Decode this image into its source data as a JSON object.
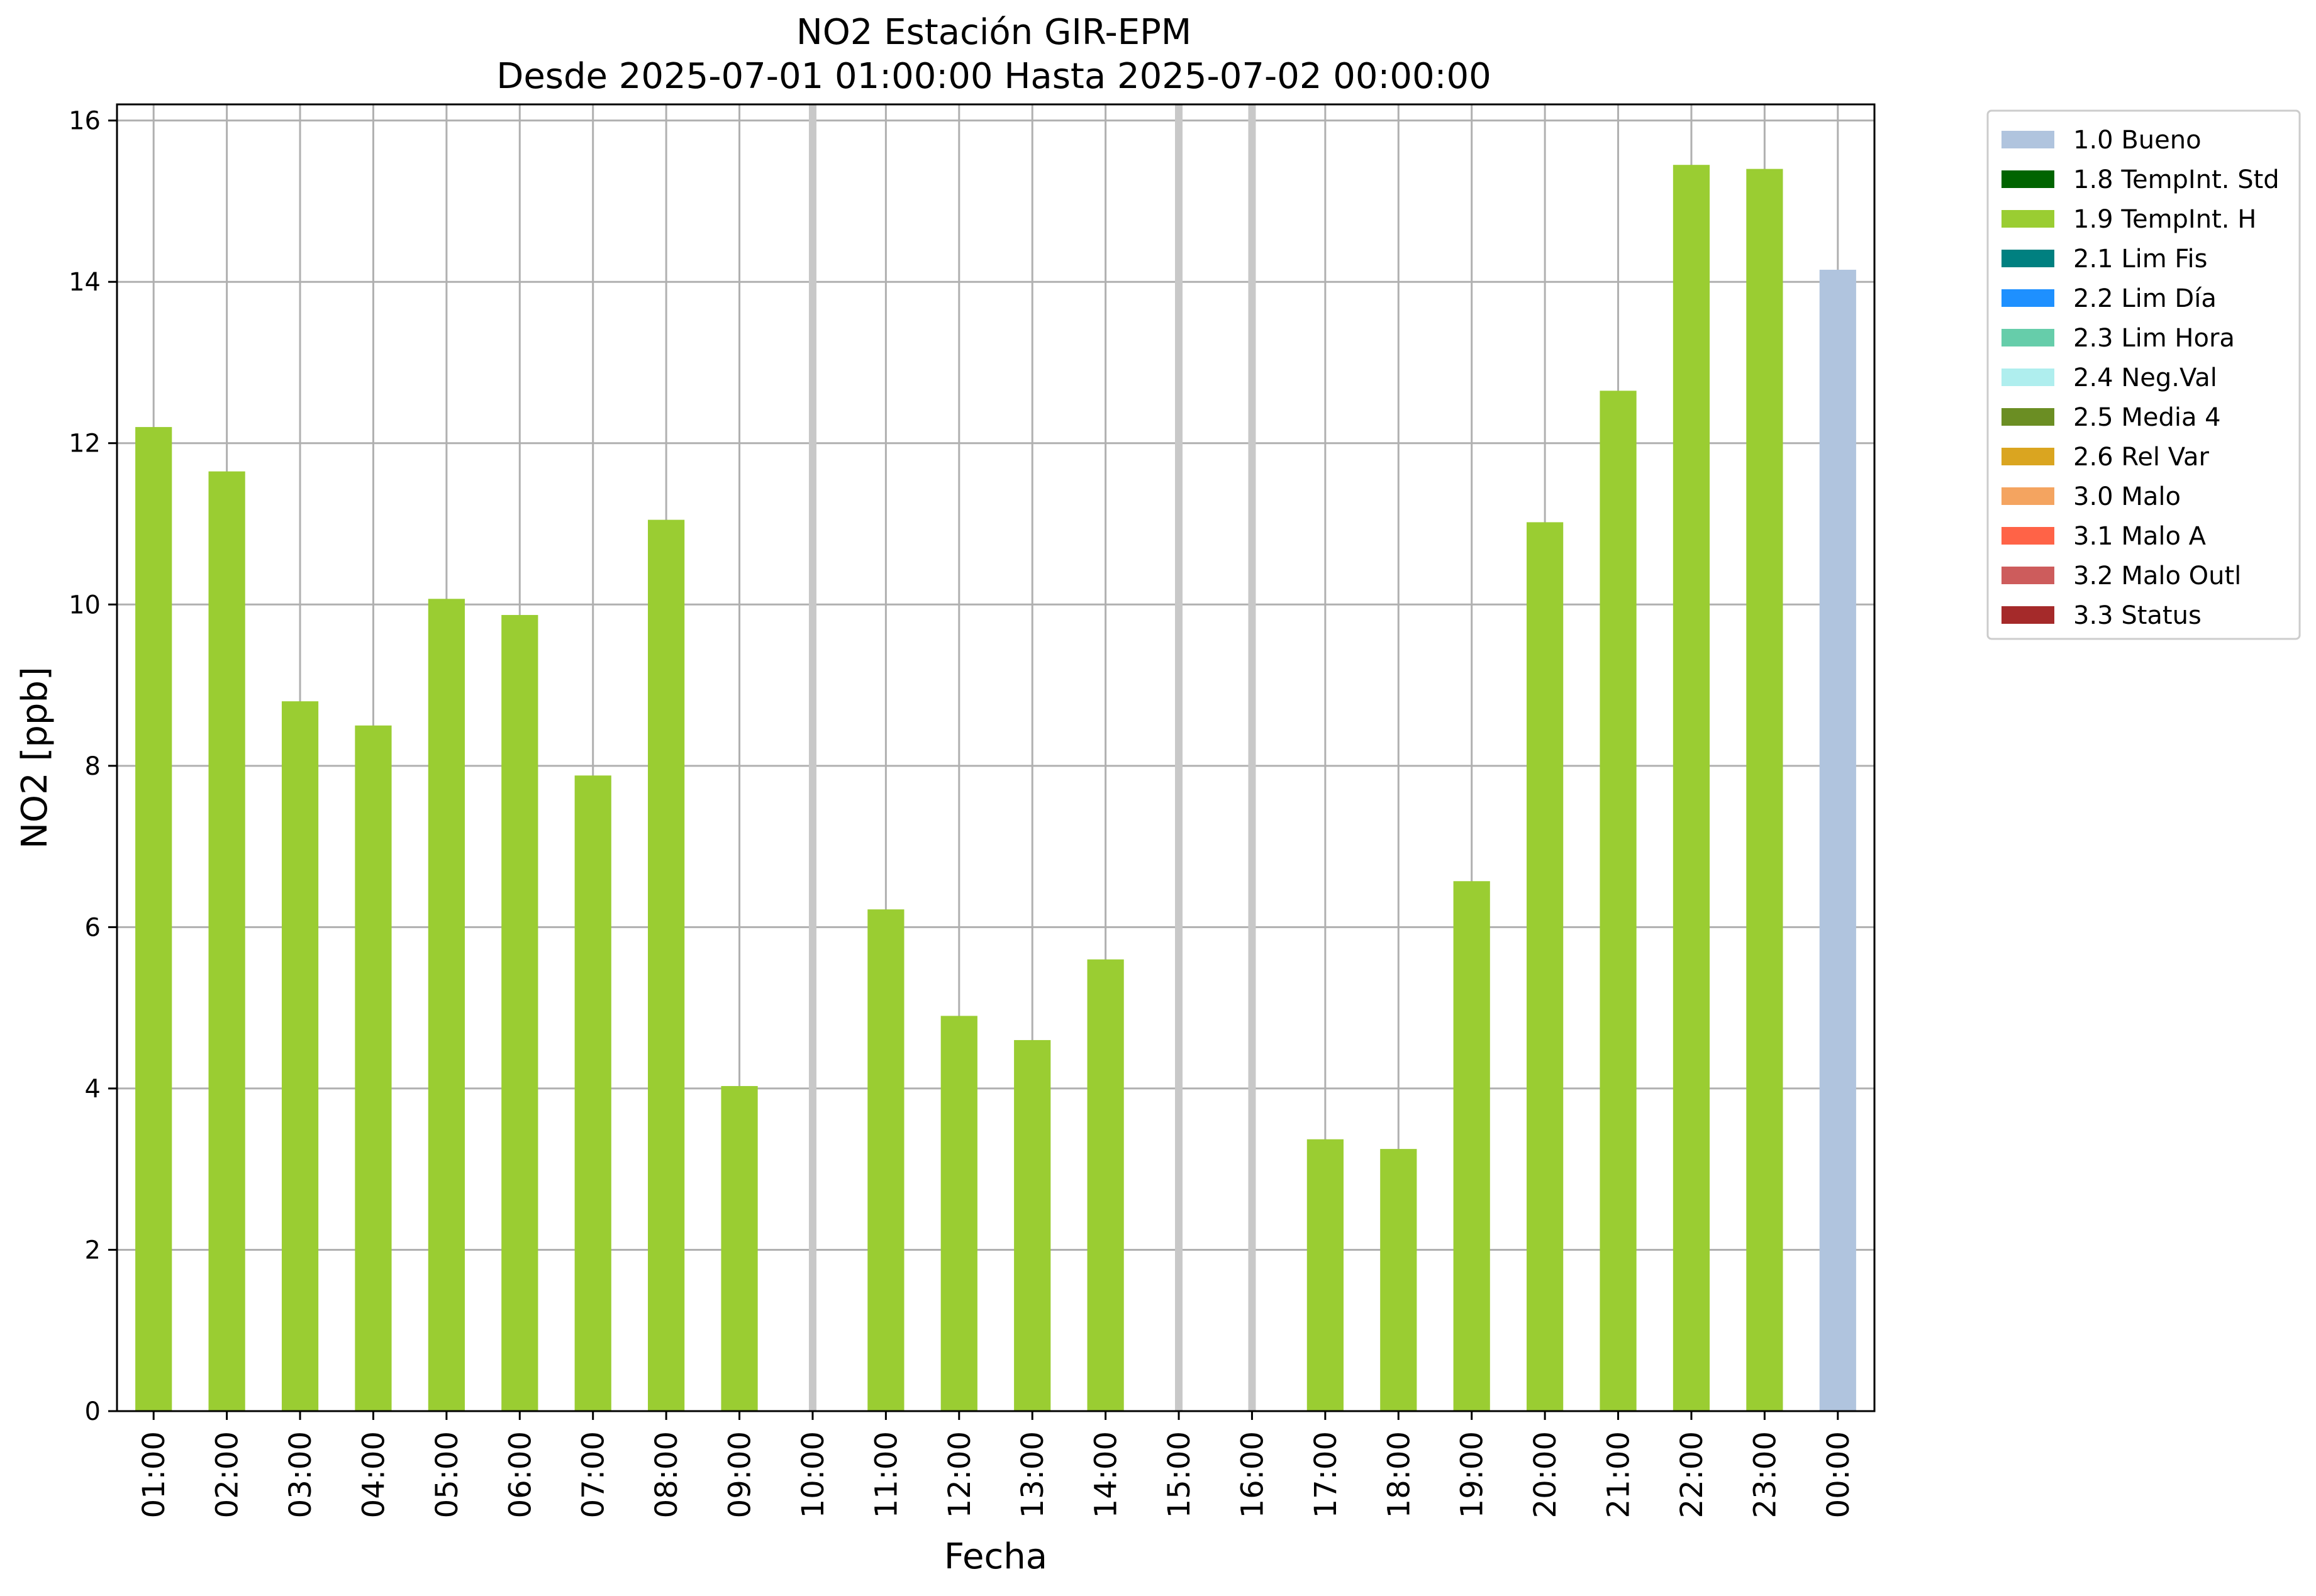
{
  "chart_data": {
    "type": "bar",
    "title": "NO2 Estación GIR-EPM",
    "subtitle": "Desde 2025-07-01 01:00:00 Hasta 2025-07-02 00:00:00",
    "xlabel": "Fecha",
    "ylabel": "NO2 [ppb]",
    "ylim": [
      0,
      16.2
    ],
    "yticks": [
      0,
      2,
      4,
      6,
      8,
      10,
      12,
      14,
      16
    ],
    "grid": true,
    "legend_position": "outside-right",
    "categories": [
      "01:00",
      "02:00",
      "03:00",
      "04:00",
      "05:00",
      "06:00",
      "07:00",
      "08:00",
      "09:00",
      "10:00",
      "11:00",
      "12:00",
      "13:00",
      "14:00",
      "15:00",
      "16:00",
      "17:00",
      "18:00",
      "19:00",
      "20:00",
      "21:00",
      "22:00",
      "23:00",
      "00:00"
    ],
    "values": [
      12.2,
      11.65,
      8.8,
      8.5,
      10.07,
      9.87,
      7.88,
      11.05,
      4.03,
      null,
      6.22,
      4.9,
      4.6,
      5.6,
      null,
      null,
      3.37,
      3.25,
      6.57,
      11.02,
      12.65,
      15.45,
      15.4,
      14.15
    ],
    "flags": [
      "1.9 TempInt. H",
      "1.9 TempInt. H",
      "1.9 TempInt. H",
      "1.9 TempInt. H",
      "1.9 TempInt. H",
      "1.9 TempInt. H",
      "1.9 TempInt. H",
      "1.9 TempInt. H",
      "1.9 TempInt. H",
      null,
      "1.9 TempInt. H",
      "1.9 TempInt. H",
      "1.9 TempInt. H",
      "1.9 TempInt. H",
      null,
      null,
      "1.9 TempInt. H",
      "1.9 TempInt. H",
      "1.9 TempInt. H",
      "1.9 TempInt. H",
      "1.9 TempInt. H",
      "1.9 TempInt. H",
      "1.9 TempInt. H",
      "1.0 Bueno"
    ],
    "missing_marker_color": "#c8c8c8",
    "legend": [
      {
        "label": "1.0 Bueno",
        "color": "#b0c4de"
      },
      {
        "label": "1.8 TempInt. Std",
        "color": "#006400"
      },
      {
        "label": "1.9 TempInt. H",
        "color": "#9acd32"
      },
      {
        "label": "2.1 Lim Fis",
        "color": "#008080"
      },
      {
        "label": "2.2 Lim Día",
        "color": "#1e90ff"
      },
      {
        "label": "2.3 Lim Hora",
        "color": "#66cdaa"
      },
      {
        "label": "2.4 Neg.Val",
        "color": "#afeeee"
      },
      {
        "label": "2.5 Media 4",
        "color": "#6b8e23"
      },
      {
        "label": "2.6 Rel Var",
        "color": "#daa520"
      },
      {
        "label": "3.0 Malo",
        "color": "#f4a460"
      },
      {
        "label": "3.1 Malo A",
        "color": "#ff6347"
      },
      {
        "label": "3.2 Malo Outl",
        "color": "#cd5c5c"
      },
      {
        "label": "3.3 Status",
        "color": "#a52a2a"
      }
    ]
  }
}
